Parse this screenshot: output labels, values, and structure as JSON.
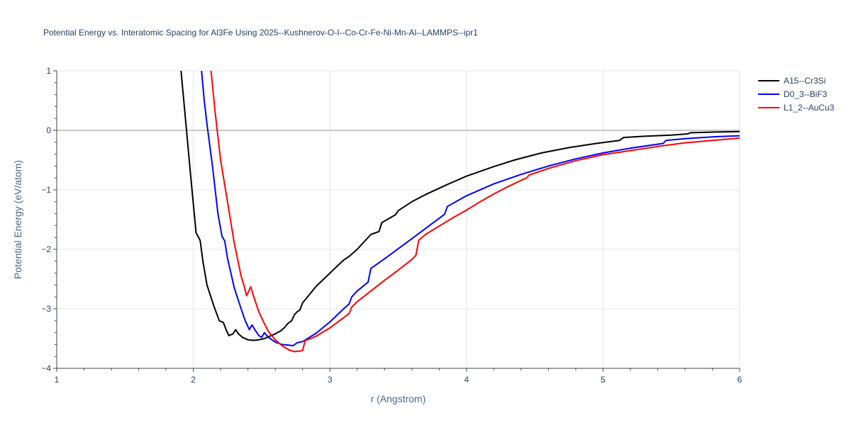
{
  "chart_data": {
    "type": "line",
    "title": "Potential Energy vs. Interatomic Spacing for Al3Fe Using 2025--Kushnerov-O-I--Co-Cr-Fe-Ni-Mn-Al--LAMMPS--ipr1",
    "xlabel": "r (Angstrom)",
    "ylabel": "Potential Energy (eV/atom)",
    "xlim": [
      1,
      6
    ],
    "ylim": [
      -4,
      1
    ],
    "xticks": [
      1,
      2,
      3,
      4,
      5,
      6
    ],
    "yticks": [
      1,
      0,
      -1,
      -2,
      -3,
      -4
    ],
    "xtick_labels": [
      "1",
      "2",
      "3",
      "4",
      "5",
      "6"
    ],
    "ytick_labels": [
      "1",
      "0",
      "−1",
      "−2",
      "−3",
      "−4"
    ],
    "grid": true,
    "legend_position": "top-right",
    "series": [
      {
        "name": "A15--Cr3Si",
        "color": "#000000",
        "x": [
          1.91,
          1.95,
          1.99,
          2.02,
          2.05,
          2.07,
          2.1,
          2.15,
          2.19,
          2.22,
          2.24,
          2.26,
          2.29,
          2.31,
          2.33,
          2.36,
          2.4,
          2.44,
          2.48,
          2.52,
          2.56,
          2.6,
          2.64,
          2.67,
          2.69,
          2.72,
          2.74,
          2.76,
          2.78,
          2.8,
          2.9,
          3.0,
          3.1,
          3.14,
          3.16,
          3.2,
          3.3,
          3.36,
          3.38,
          3.48,
          3.5,
          3.6,
          3.7,
          3.85,
          4.0,
          4.2,
          4.35,
          4.55,
          4.75,
          4.95,
          5.12,
          5.15,
          5.3,
          5.5,
          5.62,
          5.64,
          5.8,
          6.0
        ],
        "y": [
          1.0,
          0.0,
          -1.0,
          -1.72,
          -1.85,
          -2.2,
          -2.6,
          -2.95,
          -3.2,
          -3.23,
          -3.35,
          -3.45,
          -3.42,
          -3.35,
          -3.42,
          -3.48,
          -3.52,
          -3.53,
          -3.52,
          -3.5,
          -3.46,
          -3.42,
          -3.37,
          -3.31,
          -3.25,
          -3.2,
          -3.1,
          -3.05,
          -3.02,
          -2.9,
          -2.62,
          -2.4,
          -2.18,
          -2.12,
          -2.08,
          -2.0,
          -1.75,
          -1.7,
          -1.55,
          -1.42,
          -1.35,
          -1.2,
          -1.08,
          -0.92,
          -0.77,
          -0.61,
          -0.5,
          -0.38,
          -0.29,
          -0.22,
          -0.17,
          -0.12,
          -0.1,
          -0.08,
          -0.06,
          -0.04,
          -0.03,
          -0.02
        ]
      },
      {
        "name": "D0_3--BiF3",
        "color": "#0000ff",
        "x": [
          2.06,
          2.08,
          2.1,
          2.14,
          2.18,
          2.21,
          2.23,
          2.25,
          2.3,
          2.35,
          2.38,
          2.41,
          2.43,
          2.45,
          2.48,
          2.5,
          2.52,
          2.55,
          2.6,
          2.65,
          2.7,
          2.73,
          2.76,
          2.8,
          2.9,
          3.0,
          3.1,
          3.14,
          3.16,
          3.2,
          3.28,
          3.3,
          3.4,
          3.5,
          3.6,
          3.7,
          3.84,
          3.86,
          4.0,
          4.2,
          4.4,
          4.6,
          4.8,
          5.0,
          5.2,
          5.44,
          5.46,
          5.6,
          5.8,
          6.0
        ],
        "y": [
          1.0,
          0.5,
          0.1,
          -0.6,
          -1.4,
          -1.78,
          -1.86,
          -2.15,
          -2.65,
          -3.0,
          -3.2,
          -3.35,
          -3.27,
          -3.35,
          -3.45,
          -3.48,
          -3.4,
          -3.48,
          -3.56,
          -3.6,
          -3.61,
          -3.62,
          -3.57,
          -3.55,
          -3.41,
          -3.22,
          -3.0,
          -2.92,
          -2.8,
          -2.7,
          -2.55,
          -2.32,
          -2.16,
          -1.99,
          -1.82,
          -1.65,
          -1.41,
          -1.28,
          -1.1,
          -0.9,
          -0.74,
          -0.6,
          -0.48,
          -0.38,
          -0.3,
          -0.22,
          -0.17,
          -0.14,
          -0.11,
          -0.09
        ]
      },
      {
        "name": "L1_2--AuCu3",
        "color": "#ff0000",
        "x": [
          2.13,
          2.16,
          2.2,
          2.25,
          2.3,
          2.35,
          2.37,
          2.39,
          2.42,
          2.45,
          2.48,
          2.51,
          2.55,
          2.6,
          2.65,
          2.7,
          2.74,
          2.78,
          2.8,
          2.82,
          2.85,
          2.9,
          3.0,
          3.1,
          3.14,
          3.16,
          3.2,
          3.3,
          3.4,
          3.5,
          3.6,
          3.63,
          3.65,
          3.7,
          3.8,
          3.9,
          4.0,
          4.1,
          4.2,
          4.3,
          4.4,
          4.44,
          4.46,
          4.6,
          4.8,
          5.0,
          5.2,
          5.4,
          5.6,
          5.8,
          6.0
        ],
        "y": [
          1.0,
          0.3,
          -0.5,
          -1.2,
          -1.9,
          -2.45,
          -2.6,
          -2.78,
          -2.63,
          -2.85,
          -3.05,
          -3.2,
          -3.38,
          -3.52,
          -3.62,
          -3.69,
          -3.72,
          -3.71,
          -3.7,
          -3.53,
          -3.51,
          -3.46,
          -3.32,
          -3.15,
          -3.08,
          -2.97,
          -2.88,
          -2.7,
          -2.52,
          -2.35,
          -2.17,
          -2.1,
          -1.85,
          -1.75,
          -1.61,
          -1.47,
          -1.34,
          -1.2,
          -1.07,
          -0.95,
          -0.84,
          -0.8,
          -0.75,
          -0.64,
          -0.51,
          -0.41,
          -0.34,
          -0.27,
          -0.21,
          -0.17,
          -0.13
        ]
      }
    ]
  }
}
